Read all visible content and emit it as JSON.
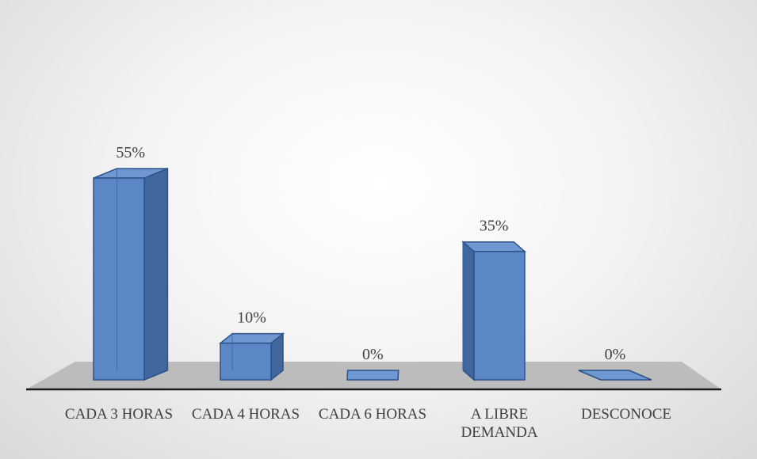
{
  "chart_data": {
    "type": "bar3d",
    "categories": [
      "CADA 3 HORAS",
      "CADA 4 HORAS",
      "CADA 6 HORAS",
      "A LIBRE DEMANDA",
      "DESCONOCE"
    ],
    "values": [
      55,
      10,
      0,
      35,
      0
    ],
    "value_labels": [
      "55%",
      "10%",
      "0%",
      "35%",
      "0%"
    ],
    "color": "#5b87c6"
  }
}
